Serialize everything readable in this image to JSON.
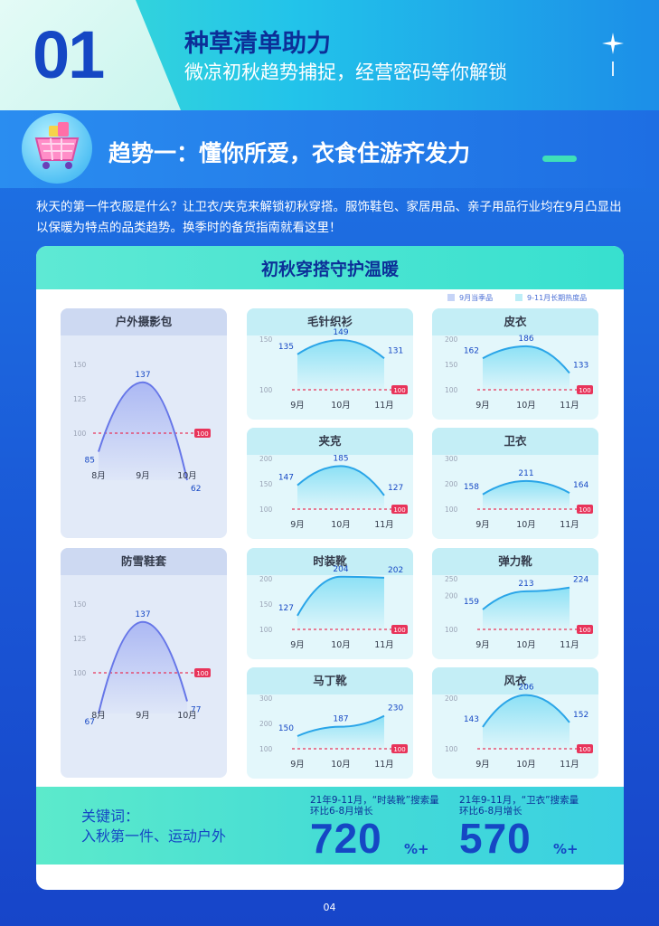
{
  "header": {
    "number": "01",
    "title": "种草清单助力",
    "subtitle": "微凉初秋趋势捕捉，经营密码等你解锁"
  },
  "trend": {
    "title": "趋势一：懂你所爱，衣食住游齐发力",
    "intro": "秋天的第一件衣服是什么？让卫衣/夹克来解锁初秋穿搭。服饰鞋包、家居用品、亲子用品行业均在9月凸显出以保暖为特点的品类趋势。换季时的备货指南就看这里！"
  },
  "card": {
    "title": "初秋穿搭守护温暖",
    "legend": {
      "season": "9月当季品",
      "longterm": "9-11月长期热度品"
    }
  },
  "colors": {
    "season_line": "#6676e8",
    "longterm_line": "#2aa5e8",
    "baseline": "#e8345a",
    "accent_blue": "#1547c4"
  },
  "chart_data": [
    {
      "type": "line",
      "group": "9月当季品",
      "title": "户外摄影包",
      "categories": [
        "8月",
        "9月",
        "10月"
      ],
      "values": [
        85,
        137,
        62
      ],
      "yticks": [
        100,
        125,
        150
      ],
      "baseline": 100
    },
    {
      "type": "line",
      "group": "9月当季品",
      "title": "防雪鞋套",
      "categories": [
        "8月",
        "9月",
        "10月"
      ],
      "values": [
        67,
        137,
        77
      ],
      "yticks": [
        100,
        125,
        150
      ],
      "baseline": 100
    },
    {
      "type": "line",
      "group": "9-11月长期热度品",
      "title": "毛针织衫",
      "categories": [
        "9月",
        "10月",
        "11月"
      ],
      "values": [
        135,
        149,
        131
      ],
      "yticks": [
        100,
        150
      ],
      "baseline": 100
    },
    {
      "type": "line",
      "group": "9-11月长期热度品",
      "title": "皮衣",
      "categories": [
        "9月",
        "10月",
        "11月"
      ],
      "values": [
        162,
        186,
        133
      ],
      "yticks": [
        100,
        150,
        200
      ],
      "baseline": 100
    },
    {
      "type": "line",
      "group": "9-11月长期热度品",
      "title": "夹克",
      "categories": [
        "9月",
        "10月",
        "11月"
      ],
      "values": [
        147,
        185,
        127
      ],
      "yticks": [
        100,
        150,
        200
      ],
      "baseline": 100
    },
    {
      "type": "line",
      "group": "9-11月长期热度品",
      "title": "卫衣",
      "categories": [
        "9月",
        "10月",
        "11月"
      ],
      "values": [
        158,
        211,
        164
      ],
      "yticks": [
        100,
        200,
        300
      ],
      "baseline": 100
    },
    {
      "type": "line",
      "group": "9-11月长期热度品",
      "title": "时装靴",
      "categories": [
        "9月",
        "10月",
        "11月"
      ],
      "values": [
        127,
        204,
        202
      ],
      "yticks": [
        100,
        150,
        200
      ],
      "baseline": 100
    },
    {
      "type": "line",
      "group": "9-11月长期热度品",
      "title": "弹力靴",
      "categories": [
        "9月",
        "10月",
        "11月"
      ],
      "values": [
        159,
        213,
        224
      ],
      "yticks": [
        100,
        200,
        250
      ],
      "baseline": 100
    },
    {
      "type": "line",
      "group": "9-11月长期热度品",
      "title": "马丁靴",
      "categories": [
        "9月",
        "10月",
        "11月"
      ],
      "values": [
        150,
        187,
        230
      ],
      "yticks": [
        100,
        200,
        300
      ],
      "baseline": 100
    },
    {
      "type": "line",
      "group": "9-11月长期热度品",
      "title": "风衣",
      "categories": [
        "9月",
        "10月",
        "11月"
      ],
      "values": [
        143,
        206,
        152
      ],
      "yticks": [
        100,
        200
      ],
      "baseline": 100
    }
  ],
  "keywords": {
    "label": "关键词：",
    "text": "入秋第一件、运动户外"
  },
  "stats": [
    {
      "line1": "21年9-11月，“时装靴”搜索量",
      "line2": "环比6-8月增长",
      "value": "720",
      "unit": "%+"
    },
    {
      "line1": "21年9-11月，“卫衣”搜索量",
      "line2": "环比6-8月增长",
      "value": "570",
      "unit": "%+"
    }
  ],
  "footer": {
    "page": "04"
  }
}
